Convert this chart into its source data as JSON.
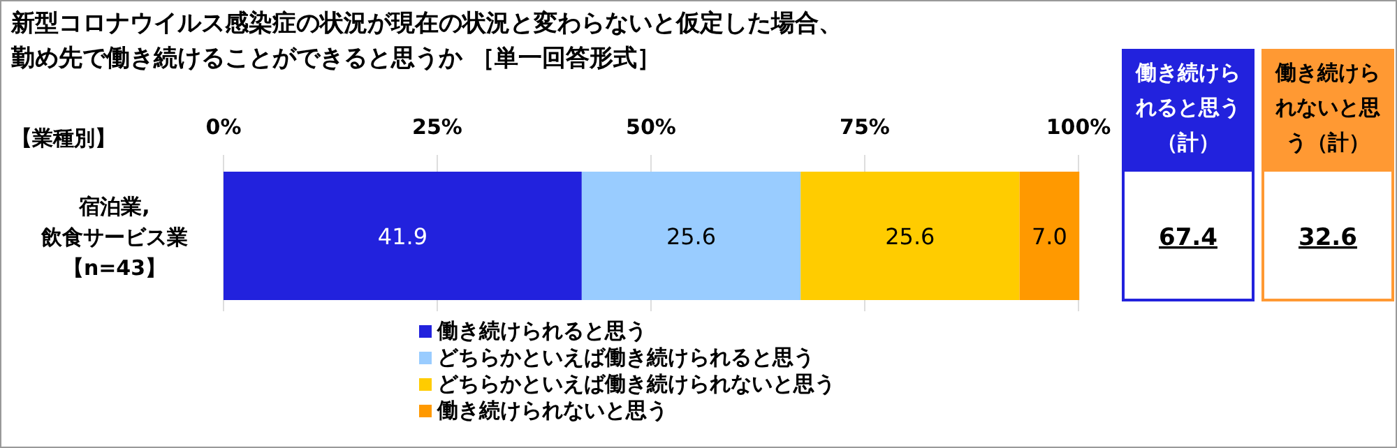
{
  "chart_data": [
    {
      "type": "bar",
      "title": "新型コロナウイルス感染症の状況が現在の状況と変わらないと仮定した場合、勤め先で働き続けることができると思うか ［単一回答形式］",
      "ylabel": "【業種別】",
      "orientation": "horizontal",
      "stacked": true,
      "categories": [
        "宿泊業,飲食サービス業【n=43】"
      ],
      "series": [
        {
          "name": "働き続けられると思う",
          "color": "#2222dd",
          "values": [
            41.9
          ],
          "value_labels": [
            "41.9"
          ]
        },
        {
          "name": "どちらかといえば働き続けられると思う",
          "color": "#99ccff",
          "values": [
            25.6
          ],
          "value_labels": [
            "25.6"
          ]
        },
        {
          "name": "どちらかといえば働き続けられないと思う",
          "color": "#ffcc00",
          "values": [
            25.6
          ],
          "value_labels": [
            "25.6"
          ]
        },
        {
          "name": "働き続けられないと思う",
          "color": "#ff9900",
          "values": [
            7.0
          ],
          "value_labels": [
            "7.0"
          ]
        }
      ],
      "xlim": [
        0,
        100
      ],
      "xticks": [
        {
          "value": 0,
          "label": "0%"
        },
        {
          "value": 25,
          "label": "25%"
        },
        {
          "value": 50,
          "label": "50%"
        },
        {
          "value": 75,
          "label": "75%"
        },
        {
          "value": 100,
          "label": "100%"
        }
      ],
      "grid": "x",
      "legend": "bottom"
    },
    {
      "type": "other",
      "categories": [
        "働き続けられると思う（計）",
        "働き続けられないと思う（計）"
      ],
      "values": [
        67.4,
        32.6
      ],
      "colors": [
        "#2222dd",
        "#ff9933"
      ],
      "data_labels": true
    }
  ]
}
